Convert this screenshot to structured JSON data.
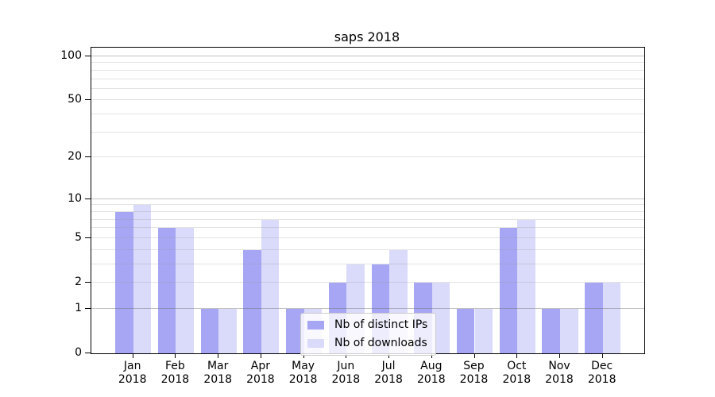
{
  "title": "saps 2018",
  "chart_data": {
    "type": "bar",
    "title": "saps 2018",
    "categories": [
      "Jan 2018",
      "Feb 2018",
      "Mar 2018",
      "Apr 2018",
      "May 2018",
      "Jun 2018",
      "Jul 2018",
      "Aug 2018",
      "Sep 2018",
      "Oct 2018",
      "Nov 2018",
      "Dec 2018"
    ],
    "series": [
      {
        "name": "Nb of distinct IPs",
        "color": "#a6a6f4",
        "values": [
          8,
          6,
          1,
          4,
          1,
          2,
          3,
          2,
          1,
          6,
          1,
          2
        ]
      },
      {
        "name": "Nb of downloads",
        "color": "#dadafa",
        "values": [
          9,
          6,
          1,
          7,
          1,
          3,
          4,
          2,
          1,
          7,
          1,
          2
        ]
      }
    ],
    "xlabel": "",
    "ylabel": "",
    "yscale": "log1p",
    "ylim": [
      0,
      114.6
    ],
    "yticks": [
      0,
      1,
      2,
      5,
      10,
      20,
      50,
      100
    ],
    "major_grid_values": [
      1,
      10,
      100
    ],
    "minor_grid_values": [
      2,
      3,
      4,
      5,
      6,
      7,
      8,
      9,
      20,
      30,
      40,
      50,
      60,
      70,
      80,
      90
    ],
    "grid": "horizontal major+minor, drawn above bars",
    "legend_position": "lower center inside axes"
  }
}
